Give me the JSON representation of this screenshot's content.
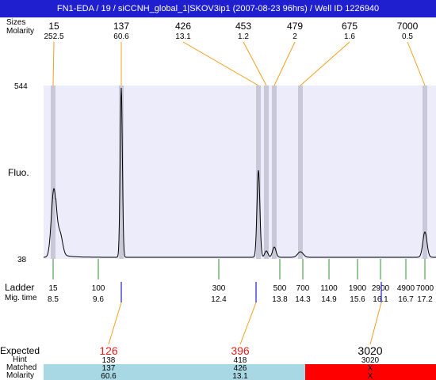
{
  "title": "FN1-EDA / 19 / siCCNH_global_1|SKOV3ip1 (2007-08-23 96hrs) / Well ID 1226940",
  "labels": {
    "sizes": "Sizes",
    "molarity": "Molarity",
    "fluo": "Fluo.",
    "ladder": "Ladder",
    "mig_time": "Mig. time",
    "expected": "Expected",
    "hint": "Hint",
    "matched": "Matched",
    "molarity_bottom": "Molarity",
    "y_max": "544",
    "y_min": "38"
  },
  "top_peaks": [
    {
      "size": "15",
      "molarity": "252.5"
    },
    {
      "size": "137",
      "molarity": "60.6"
    },
    {
      "size": "426",
      "molarity": "13.1"
    },
    {
      "size": "453",
      "molarity": "1.2"
    },
    {
      "size": "479",
      "molarity": "2"
    },
    {
      "size": "675",
      "molarity": "1.6"
    },
    {
      "size": "7000",
      "molarity": "0.5"
    }
  ],
  "ladder": [
    {
      "size": "15",
      "time": "8.5"
    },
    {
      "size": "100",
      "time": "9.6"
    },
    {
      "size": "300",
      "time": "12.4"
    },
    {
      "size": "500",
      "time": "13.8"
    },
    {
      "size": "700",
      "time": "14.3"
    },
    {
      "size": "1100",
      "time": "14.9"
    },
    {
      "size": "1900",
      "time": "15.6"
    },
    {
      "size": "2900",
      "time": "16.1"
    },
    {
      "size": "4900",
      "time": "16.7"
    },
    {
      "size": "7000",
      "time": "17.2"
    }
  ],
  "expected": [
    {
      "expected": "126",
      "hint": "138",
      "matched": "137",
      "molarity": "60.6",
      "status": "found"
    },
    {
      "expected": "396",
      "hint": "418",
      "matched": "426",
      "molarity": "13.1",
      "status": "found"
    },
    {
      "expected": "3020",
      "hint": "3020",
      "matched": "X",
      "molarity": "X",
      "status": "missing"
    }
  ],
  "colors": {
    "title_bg": "#1f1fd0",
    "plot_bg": "#ececfa",
    "peak_band": "#c8c8d8",
    "connector": "#f0a020",
    "ladder_tick": "#2f8f2f",
    "expected_tick": "#2020c0",
    "expected_found_text": "#e02020",
    "row_found_bg": "#a8d8e4",
    "row_missing_bg": "#ff0000"
  }
}
